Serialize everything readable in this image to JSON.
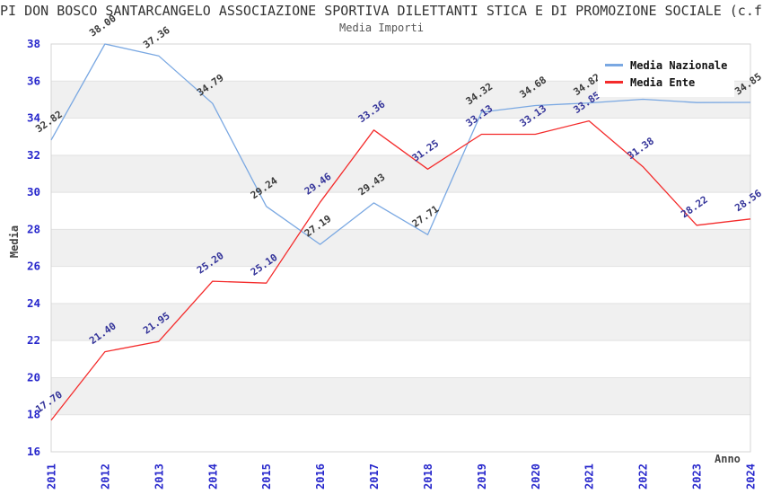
{
  "header": {
    "title": "PI DON BOSCO SANTARCANGELO ASSOCIAZIONE SPORTIVA DILETTANTI STICA E DI PROMOZIONE SOCIALE (c.f.",
    "subtitle": "Media Importi"
  },
  "chart_data": {
    "type": "line",
    "title": "Media Importi",
    "xlabel": "Anno",
    "ylabel": "Media",
    "x": [
      2011,
      2012,
      2013,
      2014,
      2015,
      2016,
      2017,
      2018,
      2019,
      2020,
      2021,
      2022,
      2023,
      2024
    ],
    "series": [
      {
        "name": "Media Nazionale",
        "color": "#7aa8e2",
        "label_color": "#3a3a3a",
        "values": [
          32.82,
          38.0,
          37.36,
          34.79,
          29.24,
          27.19,
          29.43,
          27.71,
          34.32,
          34.68,
          34.82,
          35.02,
          34.84,
          34.85
        ]
      },
      {
        "name": "Media Ente",
        "color": "#f42b2b",
        "label_color": "#333399",
        "values": [
          17.7,
          21.4,
          21.95,
          25.2,
          25.1,
          29.46,
          33.36,
          31.25,
          33.13,
          33.13,
          33.85,
          31.38,
          28.22,
          28.56
        ]
      }
    ],
    "ylim": [
      16,
      38
    ],
    "ytick_step": 2,
    "grid": true,
    "legend_position": "top-right",
    "axis_tick_color": "#2828cc",
    "band_color": "#f0f0f0",
    "grid_color": "#e2e2e2",
    "border_color": "#d4d4d4"
  }
}
